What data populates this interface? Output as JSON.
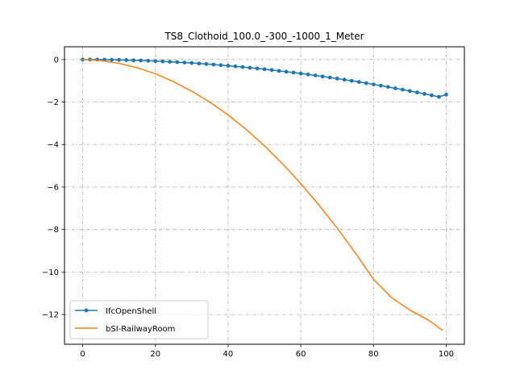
{
  "chart_data": {
    "type": "line",
    "title": "TS8_Clothoid_100.0_-300_-1000_1_Meter",
    "xlabel": "",
    "ylabel": "",
    "xlim": [
      -5,
      105
    ],
    "ylim": [
      -13.4,
      0.6
    ],
    "x_ticks": [
      0,
      20,
      40,
      60,
      80,
      100
    ],
    "y_ticks": [
      0,
      -2,
      -4,
      -6,
      -8,
      -10,
      -12
    ],
    "grid": true,
    "legend_position": "lower-left",
    "series": [
      {
        "name": "IfcOpenShell",
        "color": "#1f77b4",
        "marker": "circle",
        "x": [
          0,
          2,
          4,
          6,
          8,
          10,
          12,
          14,
          16,
          18,
          20,
          22,
          24,
          26,
          28,
          30,
          32,
          34,
          36,
          38,
          40,
          42,
          44,
          46,
          48,
          50,
          52,
          54,
          56,
          58,
          60,
          62,
          64,
          66,
          68,
          70,
          72,
          74,
          76,
          78,
          80,
          82,
          84,
          86,
          88,
          90,
          92,
          94,
          96,
          98,
          100
        ],
        "y": [
          0,
          -0.0007,
          -0.0029,
          -0.0066,
          -0.0117,
          -0.0183,
          -0.0263,
          -0.0358,
          -0.0468,
          -0.0593,
          -0.0732,
          -0.0886,
          -0.1054,
          -0.1237,
          -0.1435,
          -0.1647,
          -0.1874,
          -0.2116,
          -0.2372,
          -0.2643,
          -0.2928,
          -0.3228,
          -0.3543,
          -0.3872,
          -0.4216,
          -0.4575,
          -0.4948,
          -0.5336,
          -0.5738,
          -0.6156,
          -0.6587,
          -0.7034,
          -0.7495,
          -0.797,
          -0.8461,
          -0.8966,
          -0.9485,
          -1.0019,
          -1.0568,
          -1.1131,
          -1.171,
          -1.2302,
          -1.291,
          -1.3532,
          -1.4168,
          -1.4819,
          -1.5485,
          -1.6165,
          -1.686,
          -1.757,
          -1.65
        ]
      },
      {
        "name": "bSI-RailwayRoom",
        "color": "#ff7f0e",
        "marker": "none",
        "x": [
          0,
          5,
          10,
          15,
          20,
          25,
          30,
          35,
          40,
          45,
          50,
          55,
          60,
          65,
          70,
          75,
          80,
          85,
          90,
          95,
          99
        ],
        "y": [
          0,
          -0.05,
          -0.18,
          -0.39,
          -0.67,
          -1.04,
          -1.49,
          -2.01,
          -2.61,
          -3.29,
          -4.06,
          -4.91,
          -5.84,
          -6.85,
          -7.93,
          -9.1,
          -10.34,
          -11.21,
          -11.79,
          -12.25,
          -12.75
        ]
      }
    ]
  }
}
